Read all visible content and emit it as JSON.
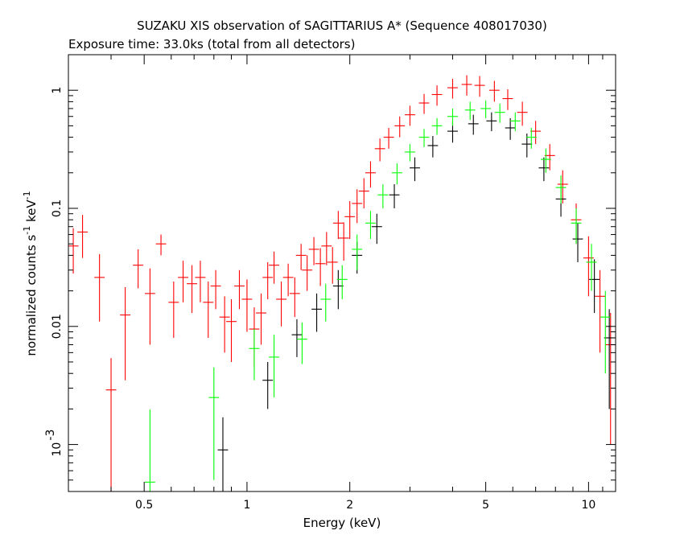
{
  "chart_data": {
    "type": "scatter",
    "title": "SUZAKU XIS observation of SAGITTARIUS A* (Sequence 408017030)",
    "subtitle": "Exposure time: 33.0ks (total from all detectors)",
    "xlabel": "Energy (keV)",
    "ylabel": "normalized counts s",
    "ylabel_unit_mid": " keV",
    "ylabel_exp": "-1",
    "xscale": "log",
    "yscale": "log",
    "xlim": [
      0.3,
      12
    ],
    "ylim": [
      0.0004,
      2
    ],
    "x_tick_labels": [
      "0.5",
      "1",
      "2",
      "5",
      "10"
    ],
    "x_tick_values": [
      0.5,
      1,
      2,
      5,
      10
    ],
    "y_tick_labels": [
      "1",
      "0.1",
      "0.01",
      "10",
      "-3"
    ],
    "y_tick_values": [
      1,
      0.1,
      0.01,
      0.001
    ],
    "grid": false,
    "series": [
      {
        "color": "#ff0000",
        "points": [
          [
            0.31,
            0.048,
            0.02
          ],
          [
            0.33,
            0.063,
            0.025
          ],
          [
            0.37,
            0.026,
            0.015
          ],
          [
            0.4,
            0.0029,
            0.0025
          ],
          [
            0.44,
            0.0125,
            0.009
          ],
          [
            0.48,
            0.033,
            0.012
          ],
          [
            0.52,
            0.019,
            0.012
          ],
          [
            0.56,
            0.05,
            0.01
          ],
          [
            0.61,
            0.016,
            0.008
          ],
          [
            0.65,
            0.026,
            0.01
          ],
          [
            0.69,
            0.023,
            0.01
          ],
          [
            0.73,
            0.026,
            0.01
          ],
          [
            0.77,
            0.016,
            0.008
          ],
          [
            0.81,
            0.022,
            0.008
          ],
          [
            0.86,
            0.012,
            0.006
          ],
          [
            0.9,
            0.011,
            0.006
          ],
          [
            0.95,
            0.022,
            0.008
          ],
          [
            1.0,
            0.017,
            0.008
          ],
          [
            1.05,
            0.0095,
            0.005
          ],
          [
            1.1,
            0.013,
            0.006
          ],
          [
            1.15,
            0.026,
            0.009
          ],
          [
            1.2,
            0.033,
            0.01
          ],
          [
            1.26,
            0.017,
            0.007
          ],
          [
            1.32,
            0.026,
            0.008
          ],
          [
            1.38,
            0.019,
            0.007
          ],
          [
            1.44,
            0.04,
            0.01
          ],
          [
            1.5,
            0.03,
            0.01
          ],
          [
            1.57,
            0.045,
            0.012
          ],
          [
            1.64,
            0.034,
            0.012
          ],
          [
            1.71,
            0.048,
            0.015
          ],
          [
            1.78,
            0.035,
            0.012
          ],
          [
            1.85,
            0.075,
            0.02
          ],
          [
            1.92,
            0.056,
            0.02
          ],
          [
            2.0,
            0.085,
            0.03
          ],
          [
            2.1,
            0.11,
            0.035
          ],
          [
            2.2,
            0.14,
            0.04
          ],
          [
            2.3,
            0.2,
            0.05
          ],
          [
            2.45,
            0.32,
            0.07
          ],
          [
            2.6,
            0.4,
            0.08
          ],
          [
            2.8,
            0.5,
            0.1
          ],
          [
            3.0,
            0.62,
            0.12
          ],
          [
            3.3,
            0.78,
            0.15
          ],
          [
            3.6,
            0.92,
            0.18
          ],
          [
            4.0,
            1.05,
            0.2
          ],
          [
            4.4,
            1.12,
            0.22
          ],
          [
            4.8,
            1.1,
            0.22
          ],
          [
            5.3,
            1.0,
            0.2
          ],
          [
            5.8,
            0.85,
            0.17
          ],
          [
            6.4,
            0.65,
            0.15
          ],
          [
            7.0,
            0.45,
            0.1
          ],
          [
            7.7,
            0.28,
            0.07
          ],
          [
            8.4,
            0.16,
            0.05
          ],
          [
            9.2,
            0.08,
            0.03
          ],
          [
            10.0,
            0.038,
            0.02
          ],
          [
            10.8,
            0.018,
            0.012
          ],
          [
            11.6,
            0.007,
            0.006
          ]
        ]
      },
      {
        "color": "#00ff00",
        "points": [
          [
            0.52,
            0.00048,
            0.0015
          ],
          [
            0.8,
            0.0025,
            0.002
          ],
          [
            1.05,
            0.0065,
            0.003
          ],
          [
            1.2,
            0.0055,
            0.003
          ],
          [
            1.45,
            0.0078,
            0.003
          ],
          [
            1.7,
            0.017,
            0.006
          ],
          [
            1.9,
            0.025,
            0.008
          ],
          [
            2.1,
            0.045,
            0.015
          ],
          [
            2.3,
            0.075,
            0.02
          ],
          [
            2.5,
            0.13,
            0.03
          ],
          [
            2.75,
            0.2,
            0.04
          ],
          [
            3.0,
            0.3,
            0.05
          ],
          [
            3.3,
            0.4,
            0.07
          ],
          [
            3.6,
            0.5,
            0.08
          ],
          [
            4.0,
            0.6,
            0.1
          ],
          [
            4.5,
            0.68,
            0.12
          ],
          [
            5.0,
            0.7,
            0.12
          ],
          [
            5.5,
            0.65,
            0.12
          ],
          [
            6.1,
            0.55,
            0.1
          ],
          [
            6.8,
            0.4,
            0.08
          ],
          [
            7.5,
            0.26,
            0.06
          ],
          [
            8.3,
            0.15,
            0.04
          ],
          [
            9.2,
            0.075,
            0.025
          ],
          [
            10.2,
            0.035,
            0.015
          ],
          [
            11.2,
            0.012,
            0.008
          ]
        ]
      },
      {
        "color": "#000000",
        "points": [
          [
            0.85,
            0.0009,
            0.0008
          ],
          [
            1.15,
            0.0035,
            0.0015
          ],
          [
            1.4,
            0.0085,
            0.003
          ],
          [
            1.6,
            0.014,
            0.005
          ],
          [
            1.85,
            0.022,
            0.008
          ],
          [
            2.1,
            0.04,
            0.012
          ],
          [
            2.4,
            0.07,
            0.02
          ],
          [
            2.7,
            0.13,
            0.03
          ],
          [
            3.1,
            0.22,
            0.05
          ],
          [
            3.5,
            0.34,
            0.07
          ],
          [
            4.0,
            0.45,
            0.09
          ],
          [
            4.6,
            0.52,
            0.1
          ],
          [
            5.2,
            0.55,
            0.1
          ],
          [
            5.9,
            0.48,
            0.1
          ],
          [
            6.6,
            0.35,
            0.08
          ],
          [
            7.4,
            0.22,
            0.05
          ],
          [
            8.3,
            0.12,
            0.035
          ],
          [
            9.3,
            0.055,
            0.02
          ],
          [
            10.4,
            0.025,
            0.012
          ],
          [
            11.5,
            0.008,
            0.006
          ]
        ]
      }
    ]
  }
}
